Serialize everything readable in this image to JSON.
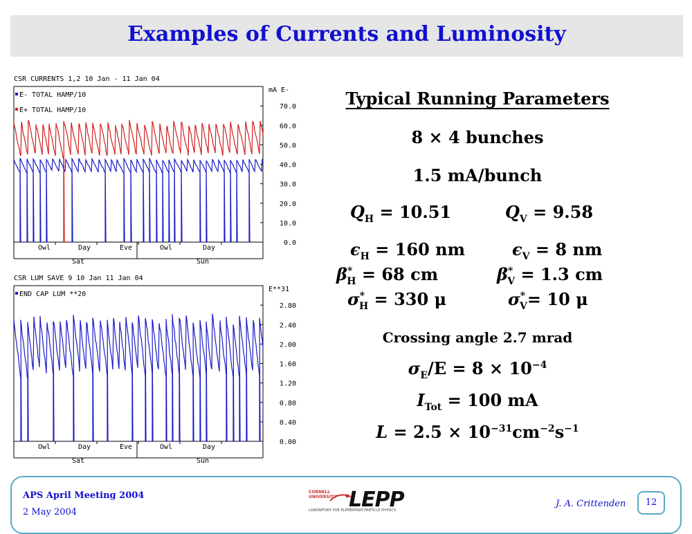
{
  "slide": {
    "title": "Examples of Currents and Luminosity",
    "footer": {
      "meeting": "APS April Meeting 2004",
      "date": "2 May 2004",
      "author": "J. A. Crittenden",
      "page": "12",
      "logo_text": "LEPP",
      "logo_small_1": "CORNELL",
      "logo_small_2": "UNIVERSITY",
      "logo_tagline": "LABORATORY FOR ELEMENTARY-PARTICLE PHYSICS"
    }
  },
  "params": {
    "heading": "Typical Running Parameters",
    "bunches": "8 × 4 bunches",
    "current_per_bunch": "1.5 mA/bunch",
    "tune_h": "Q",
    "tune_h_sub": "H",
    "tune_h_val": " = 10.51",
    "tune_v": "Q",
    "tune_v_sub": "V",
    "tune_v_val": " = 9.58",
    "eps_h": "ϵ",
    "eps_h_sub": "H",
    "eps_h_val": " = 160 nm",
    "eps_v": "ϵ",
    "eps_v_sub": "V",
    "eps_v_val": " = 8 nm",
    "beta_h": "β",
    "beta_h_sup": "*",
    "beta_h_sub": "H",
    "beta_h_val": " = 68 cm",
    "beta_v": "β",
    "beta_v_sup": "*",
    "beta_v_sub": "V",
    "beta_v_val": " = 1.3 cm",
    "sigma_h": "σ",
    "sigma_h_sup": "*",
    "sigma_h_sub": "H",
    "sigma_h_val": " = 330 μ",
    "sigma_v": "σ",
    "sigma_v_sup": "*",
    "sigma_v_sub": "V",
    "sigma_v_val": "= 10 μ",
    "crossing": "Crossing angle 2.7 mrad",
    "energy_spread_a": "σ",
    "energy_spread_sub": "E",
    "energy_spread_b": "/E = 8 × 10",
    "energy_spread_exp": "−4",
    "itot": "I",
    "itot_sub": "Tot",
    "itot_val": " = 100 mA",
    "lum_a": "L",
    "lum_b": " = 2.5 × 10",
    "lum_exp1": "−31",
    "lum_c": "cm",
    "lum_exp2": "−2",
    "lum_d": "s",
    "lum_exp3": "−1"
  },
  "chart_data": [
    {
      "type": "line",
      "title": "CSR CURRENTS 1,2   10 Jan - 11 Jan  04",
      "ylabel": "mA E-",
      "ylim": [
        0,
        80
      ],
      "yticks": [
        "70.0",
        "60.0",
        "50.0",
        "40.0",
        "30.0",
        "20.0",
        "10.0",
        "0.0"
      ],
      "ytick_values": [
        70,
        60,
        50,
        40,
        30,
        20,
        10,
        0
      ],
      "xlabels_top": [
        "Owl",
        "Day",
        "Eve",
        "Owl",
        "Day"
      ],
      "xlabels_bottom": [
        "Sat",
        "Sun"
      ],
      "legend": [
        "E- TOTAL HAMP/10",
        "E+ TOTAL HAMP/10"
      ],
      "series": [
        {
          "name": "E- TOTAL HAMP/10",
          "color": "#1a1ac8",
          "base": 36,
          "peak": 43,
          "drop": 0,
          "period": 4.2,
          "drops": 0.55
        },
        {
          "name": "E+ TOTAL HAMP/10",
          "color": "#d21e1e",
          "base": 44,
          "peak": 63,
          "drop": 0,
          "period": 5.0,
          "drops": 0.12
        }
      ]
    },
    {
      "type": "line",
      "title": "CSR LUM SAVE 9   10 Jan   11 Jan  04",
      "ylabel": "E**31",
      "ylim": [
        0,
        3.2
      ],
      "yticks": [
        "2.80",
        "2.40",
        "2.00",
        "1.60",
        "1.20",
        "0.80",
        "0.40",
        "0.00"
      ],
      "ytick_values": [
        2.8,
        2.4,
        2.0,
        1.6,
        1.2,
        0.8,
        0.4,
        0.0
      ],
      "xlabels_top": [
        "Owl",
        "Day",
        "Eve",
        "Owl",
        "Day"
      ],
      "xlabels_bottom": [
        "Sat",
        "Sun"
      ],
      "legend": [
        "END CAP LUM **20"
      ],
      "series": [
        {
          "name": "END CAP LUM **20",
          "color": "#1a1ac8",
          "base": 1.4,
          "peak": 2.6,
          "drop": 0,
          "period": 4.5,
          "drops": 0.55
        }
      ]
    }
  ]
}
